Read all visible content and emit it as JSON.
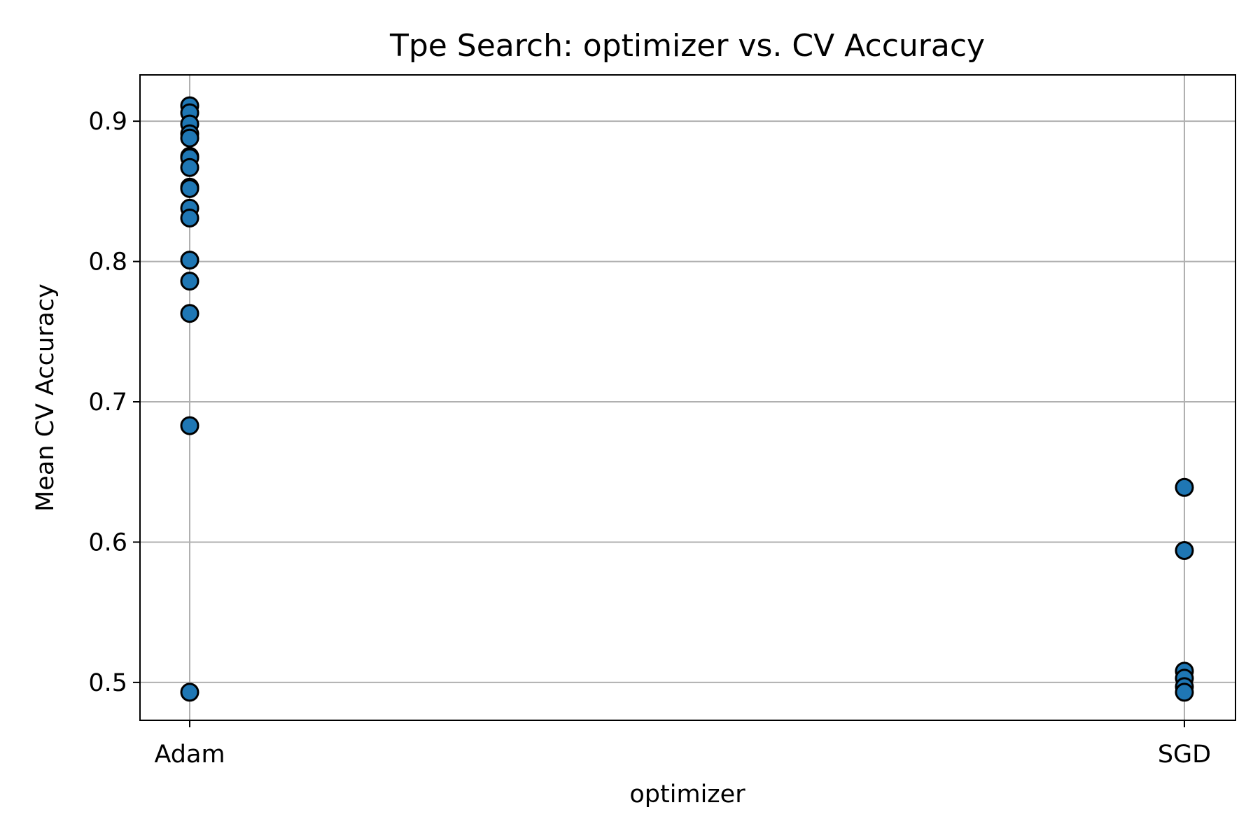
{
  "chart_data": {
    "type": "scatter",
    "title": "Tpe Search: optimizer vs. CV Accuracy",
    "xlabel": "optimizer",
    "ylabel": "Mean CV Accuracy",
    "categories": [
      "Adam",
      "SGD"
    ],
    "ylim": [
      0.473,
      0.933
    ],
    "yticks": [
      0.5,
      0.6,
      0.7,
      0.8,
      0.9
    ],
    "ytick_labels": [
      "0.5",
      "0.6",
      "0.7",
      "0.8",
      "0.9"
    ],
    "grid": true,
    "marker_color": "#1f77b4",
    "marker_edge": "#000000",
    "series": [
      {
        "category": "Adam",
        "values": [
          0.911,
          0.906,
          0.898,
          0.891,
          0.888,
          0.875,
          0.874,
          0.867,
          0.853,
          0.852,
          0.838,
          0.831,
          0.801,
          0.786,
          0.763,
          0.683,
          0.493
        ]
      },
      {
        "category": "SGD",
        "values": [
          0.639,
          0.594,
          0.508,
          0.503,
          0.497,
          0.493
        ]
      }
    ]
  }
}
